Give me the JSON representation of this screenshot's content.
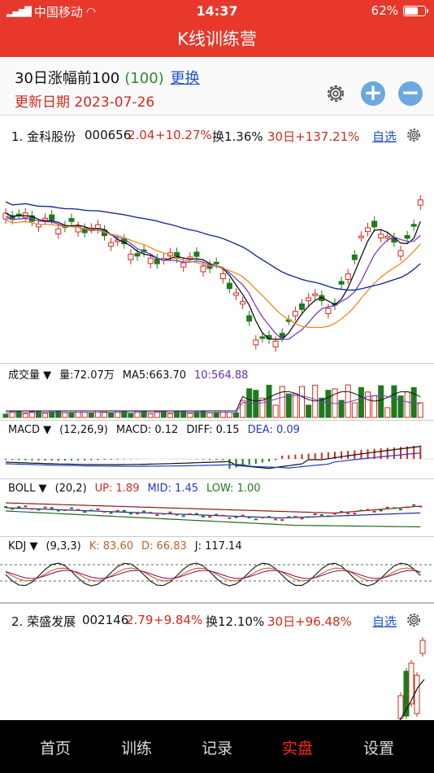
{
  "status": {
    "carrier": "中国移动",
    "time": "14:37",
    "battery": "62%"
  },
  "nav": {
    "title": "K线训练营"
  },
  "list": {
    "title": "30日涨幅前100",
    "count": "(100)",
    "switch": "更换",
    "date": "更新日期 2023-07-26"
  },
  "stock1": {
    "name": "1. 金科股份",
    "code": "000656",
    "price": "2.04",
    "change": "+10.27%",
    "turnover": "换1.36%",
    "d30": "30日+137.21%",
    "fav": "自选",
    "vol": {
      "label": "成交量",
      "amount": "量:72.07万",
      "ma5": "MA5:663.70",
      "ma10": "10:564.88"
    },
    "macd": {
      "label": "MACD",
      "params": "(12,26,9)",
      "macd": "MACD: 0.12",
      "diff": "DIFF: 0.15",
      "dea": "DEA: 0.09"
    },
    "boll": {
      "label": "BOLL",
      "params": "(20,2)",
      "up": "UP: 1.89",
      "mid": "MID: 1.45",
      "low": "LOW: 1.00"
    },
    "kdj": {
      "label": "KDJ",
      "params": "(9,3,3)",
      "k": "K: 83.60",
      "d": "D: 66.83",
      "j": "J: 117.14"
    }
  },
  "stock2": {
    "name": "2. 荣盛发展",
    "code": "002146",
    "price": "2.79",
    "change": "+9.84%",
    "turnover": "换12.10%",
    "d30": "30日+96.48%",
    "fav": "自选"
  },
  "tabs": [
    "首页",
    "训练",
    "记录",
    "实盘",
    "设置"
  ],
  "active_tab": "实盘",
  "colors": {
    "brand": "#e8382b",
    "up": "#d42a1e",
    "down": "#1e7a1e",
    "link": "#1f50d0"
  }
}
